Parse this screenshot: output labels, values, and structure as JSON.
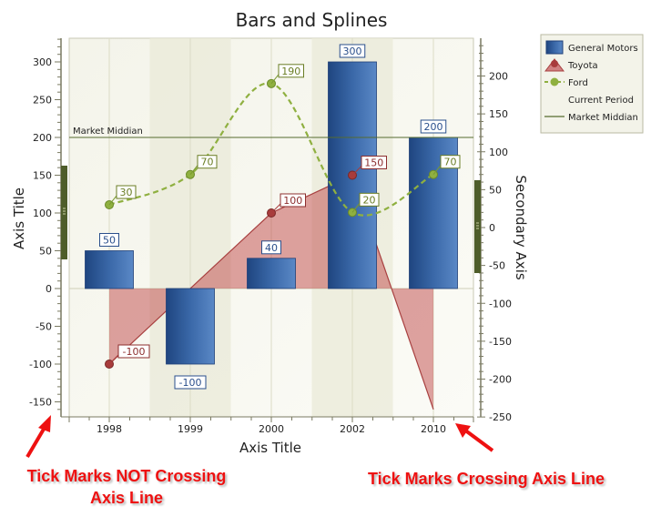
{
  "chart_data": {
    "type": "bar",
    "title": "Bars and Splines",
    "xlabel": "Axis Title",
    "ylabel": "Axis Title",
    "y2label": "Secondary Axis",
    "categories": [
      "1998",
      "1999",
      "2000",
      "2002",
      "2010"
    ],
    "ylim": [
      -160,
      330
    ],
    "yticks": [
      -150,
      -100,
      -50,
      0,
      50,
      100,
      150,
      200,
      250,
      300
    ],
    "y2lim": [
      -250,
      245
    ],
    "y2ticks": [
      -250,
      -200,
      -150,
      -100,
      -50,
      0,
      50,
      100,
      150,
      200
    ],
    "grid": true,
    "legend_position": "top-right",
    "series": [
      {
        "name": "General Motors",
        "kind": "bar",
        "values": [
          50,
          -100,
          40,
          300,
          200
        ],
        "color": "#3a68a8"
      },
      {
        "name": "Toyota",
        "kind": "area",
        "values": [
          -100,
          null,
          100,
          150,
          -160
        ],
        "point_labels": [
          "-100",
          "",
          "100",
          "150",
          ""
        ],
        "color": "#c05050"
      },
      {
        "name": "Ford",
        "kind": "spline",
        "values": [
          30,
          70,
          190,
          20,
          70
        ],
        "color": "#8fb040"
      }
    ],
    "legend": [
      {
        "label": "General Motors",
        "symbol": "bar"
      },
      {
        "label": "Toyota",
        "symbol": "area-marker"
      },
      {
        "label": "Ford",
        "symbol": "dashed-marker"
      },
      {
        "label": "Current Period",
        "symbol": "none"
      },
      {
        "label": "Market Middian",
        "symbol": "line"
      }
    ],
    "constant_line": {
      "label": "Market Middian",
      "value": 200,
      "color": "#556b2f"
    }
  },
  "annotations": {
    "left": [
      "Tick Marks NOT Crossing",
      "Axis Line"
    ],
    "right": "Tick Marks Crossing Axis Line"
  }
}
